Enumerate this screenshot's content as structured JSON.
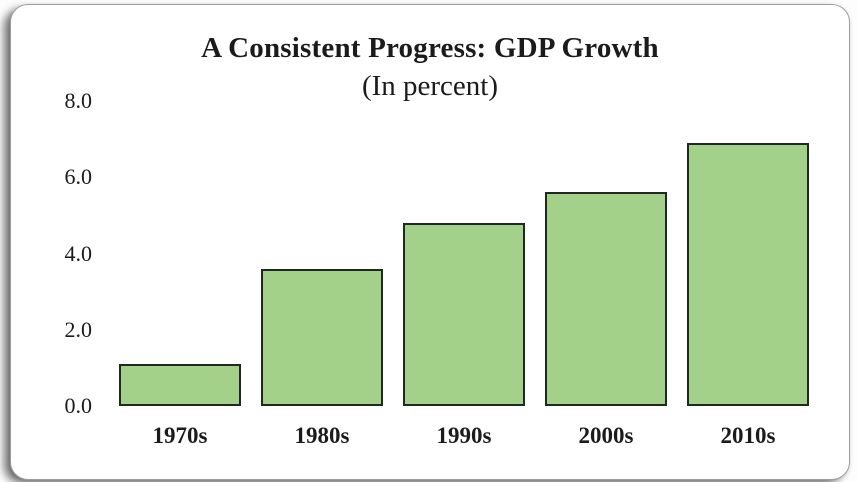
{
  "chart_data": {
    "type": "bar",
    "title": "A Consistent Progress: GDP Growth",
    "subtitle": "(In percent)",
    "categories": [
      "1970s",
      "1980s",
      "1990s",
      "2000s",
      "2010s"
    ],
    "values": [
      1.1,
      3.6,
      4.8,
      5.6,
      6.9
    ],
    "ylim": [
      0,
      8
    ],
    "yticks": [
      8.0,
      6.0,
      4.0,
      2.0,
      0.0
    ],
    "ytick_labels": [
      "8.0",
      "6.0",
      "4.0",
      "2.0",
      "0.0"
    ],
    "xlabel": "",
    "ylabel": "",
    "grid": false,
    "legend": false,
    "bar_fill": "#a3d18a",
    "bar_border": "#1f291f",
    "text_color": "#1b1b1b"
  },
  "card": {
    "background": "#ffffff",
    "border_color": "#9e9e9e"
  }
}
